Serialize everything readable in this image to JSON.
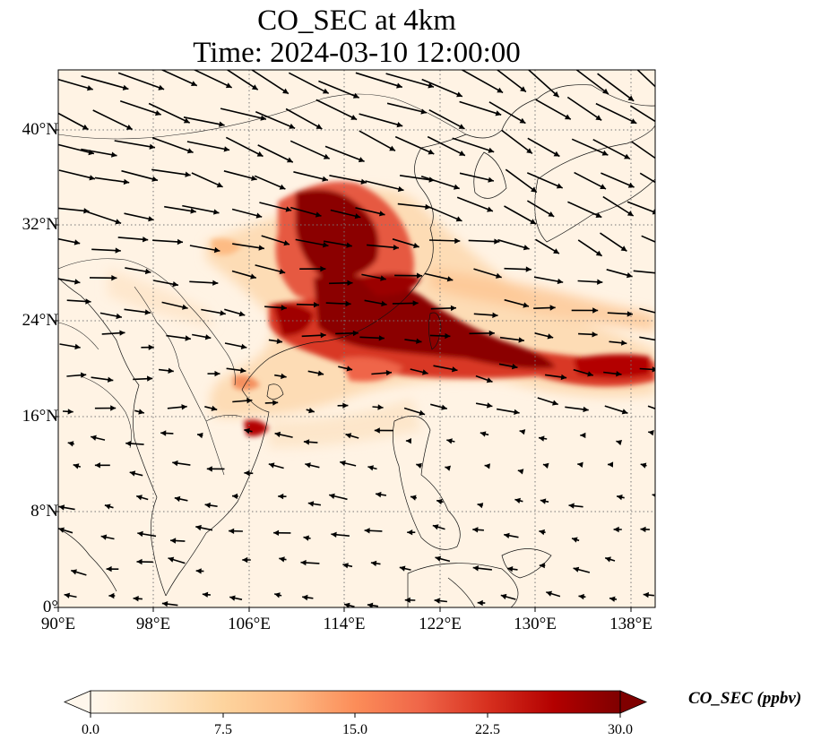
{
  "title": {
    "line1": "CO_SEC at 4km",
    "line2": "Time: 2024-03-10 12:00:00"
  },
  "map": {
    "projection": "PlateCarree",
    "lon_range": [
      90,
      140
    ],
    "lat_range": [
      0,
      44
    ],
    "gridlines": "dotted",
    "coastlines": true,
    "country_borders": true,
    "x_ticks": [
      "90°E",
      "98°E",
      "106°E",
      "114°E",
      "122°E",
      "130°E",
      "138°E"
    ],
    "y_ticks": [
      "0°",
      "8°N",
      "16°N",
      "24°N",
      "32°N",
      "40°N"
    ],
    "field": "CO_SEC",
    "wind_vectors": true
  },
  "colorbar": {
    "label": "CO_SEC (ppbv)",
    "colormap": "OrRd",
    "min": 0.0,
    "max": 30.0,
    "extend": "both",
    "ticks": [
      "0.0",
      "7.5",
      "15.0",
      "22.5",
      "30.0"
    ],
    "colors": [
      "#fff7ec",
      "#fee8c8",
      "#fdd49e",
      "#fdbb84",
      "#fc8d59",
      "#ef6548",
      "#d7301f",
      "#b30000",
      "#7f0000"
    ]
  }
}
